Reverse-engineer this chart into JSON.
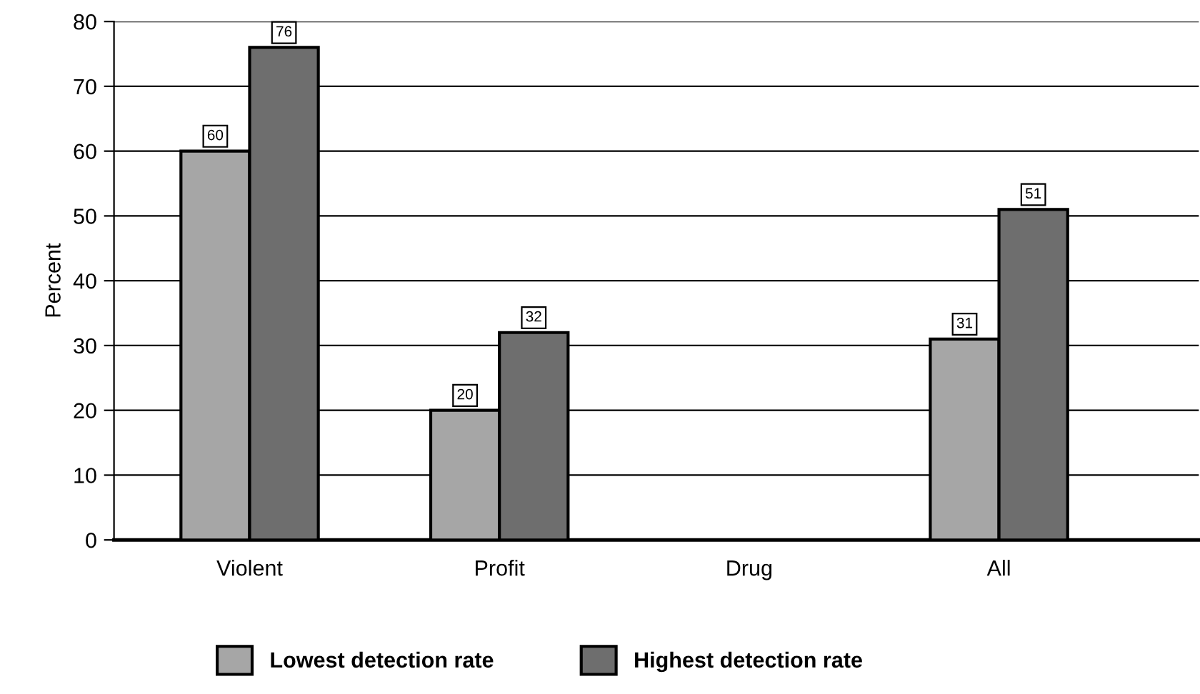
{
  "chart_data": {
    "type": "bar",
    "ylabel": "Percent",
    "categories": [
      "Violent",
      "Profit",
      "Drug",
      "All"
    ],
    "series": [
      {
        "name": "Lowest detection rate",
        "color": "#a6a6a6",
        "values": [
          60,
          20,
          null,
          31
        ]
      },
      {
        "name": "Highest detection rate",
        "color": "#6e6e6e",
        "values": [
          76,
          32,
          null,
          51
        ]
      }
    ],
    "ylim": [
      0,
      80
    ],
    "yticks": [
      0,
      10,
      20,
      30,
      40,
      50,
      60,
      70,
      80
    ],
    "grid": "y",
    "legend": "bottom",
    "data_labels": true
  }
}
